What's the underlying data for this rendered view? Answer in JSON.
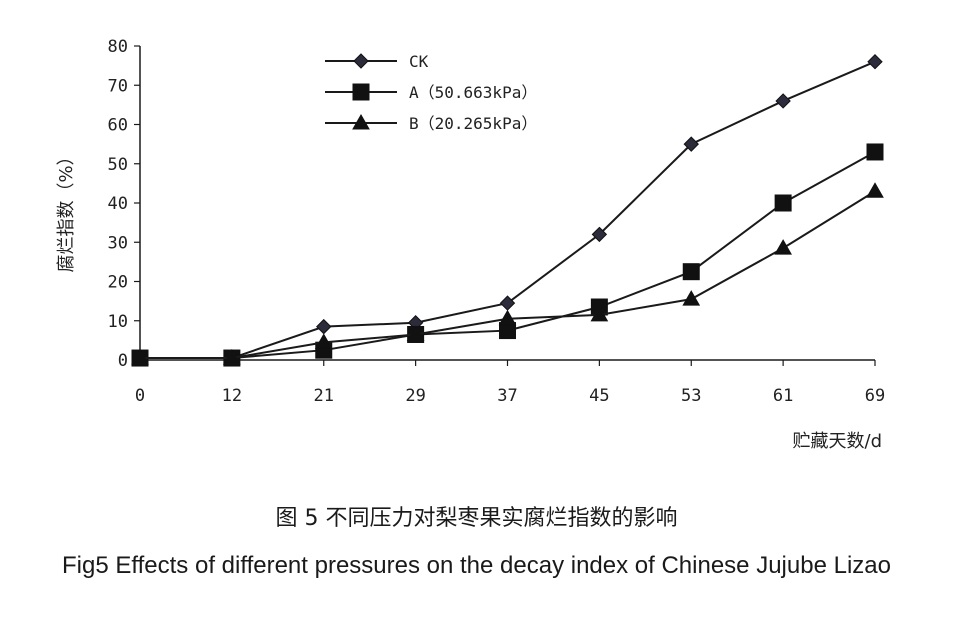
{
  "chart_data": {
    "type": "line",
    "categories": [
      "0",
      "12",
      "21",
      "29",
      "37",
      "45",
      "53",
      "61",
      "69"
    ],
    "series": [
      {
        "name": "CK",
        "marker": "diamond",
        "values": [
          0.5,
          0.5,
          8.5,
          9.5,
          14.5,
          32,
          55,
          66,
          76
        ]
      },
      {
        "name": "A（50.663kPa）",
        "marker": "square",
        "values": [
          0.5,
          0.5,
          2.5,
          6.5,
          7.5,
          13.5,
          22.5,
          40,
          53
        ]
      },
      {
        "name": "B（20.265kPa）",
        "marker": "triangle",
        "values": [
          0.5,
          0.5,
          4.5,
          6.5,
          10.5,
          11.5,
          15.5,
          28.5,
          43
        ]
      }
    ],
    "yticks": [
      "0",
      "10",
      "20",
      "30",
      "40",
      "50",
      "60",
      "70",
      "80"
    ],
    "ylim": [
      0,
      80
    ],
    "ylabel": "腐烂指数（%）",
    "xlabel": "贮藏天数/d",
    "legend_position": "top-left",
    "grid": false
  },
  "caption": {
    "zh": "图 5  不同压力对梨枣果实腐烂指数的影响",
    "en": "Fig5  Effects of different pressures on the decay index of Chinese Jujube Lizao"
  },
  "colors": {
    "line": "#1a1a1a",
    "marker": "#111111"
  }
}
